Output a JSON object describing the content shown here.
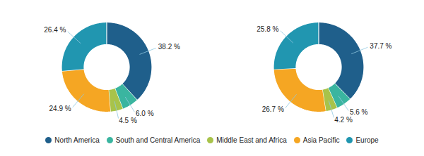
{
  "chart_data": [
    {
      "type": "pie",
      "categories": [
        "North America",
        "South and Central America",
        "Middle East and Africa",
        "Asia Pacific",
        "Europe"
      ],
      "values": [
        38.2,
        6.0,
        4.5,
        24.9,
        26.4
      ],
      "value_labels": [
        "38.2 %",
        "6.0 %",
        "4.5 %",
        "24.9 %",
        "26.4 %"
      ],
      "colors": [
        "#1f5f8b",
        "#3ab5a0",
        "#a8c34a",
        "#f5a623",
        "#2196b0"
      ],
      "data_labels": true,
      "legend": "bottom"
    },
    {
      "type": "pie",
      "categories": [
        "North America",
        "South and Central America",
        "Middle East and Africa",
        "Asia Pacific",
        "Europe"
      ],
      "values": [
        37.7,
        5.6,
        4.2,
        26.7,
        25.8
      ],
      "value_labels": [
        "37.7 %",
        "5.6 %",
        "4.2 %",
        "26.7 %",
        "25.8 %"
      ],
      "colors": [
        "#1f5f8b",
        "#3ab5a0",
        "#a8c34a",
        "#f5a623",
        "#2196b0"
      ],
      "data_labels": true,
      "legend": "bottom"
    }
  ]
}
